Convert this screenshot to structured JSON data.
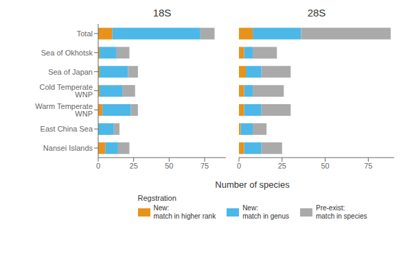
{
  "chart_data": [
    {
      "type": "bar",
      "orientation": "horizontal",
      "stacked": true,
      "title": "18S",
      "xlabel": "Number of species",
      "legend_title": "Regstration",
      "categories": [
        "Total",
        "Sea of Okhotsk",
        "Sea of Japan",
        "Cold Temperate WNP",
        "Warm Temperate WNP",
        "East China Sea",
        "Nansei Islands"
      ],
      "series": [
        {
          "name": "New:\nmatch in higher rank",
          "color": "#E8921A",
          "values": [
            10,
            1,
            1,
            1,
            3,
            0,
            5
          ]
        },
        {
          "name": "New:\nmatch in genus",
          "color": "#4BB8E8",
          "values": [
            62,
            12,
            20,
            16,
            20,
            11,
            9
          ]
        },
        {
          "name": "Pre-exist:\nmatch in species",
          "color": "#AAAAAA",
          "values": [
            10,
            9,
            7,
            9,
            5,
            4,
            8
          ]
        }
      ],
      "xlim": [
        0,
        90
      ],
      "xticks": [
        0,
        25,
        50,
        75
      ],
      "grid": false
    },
    {
      "type": "bar",
      "orientation": "horizontal",
      "stacked": true,
      "title": "28S",
      "tick_labels": "x",
      "categories": [
        "Total",
        "Sea of Okhotsk",
        "Sea of Japan",
        "Cold Temperate WNP",
        "Warm Temperate WNP",
        "East China Sea",
        "Nansei Islands"
      ],
      "series": [
        {
          "name": "New:\nmatch in higher rank",
          "color": "#E8921A",
          "values": [
            8,
            3,
            4,
            3,
            3,
            1,
            3
          ]
        },
        {
          "name": "New:\nmatch in genus",
          "color": "#4BB8E8",
          "values": [
            28,
            5,
            9,
            5,
            10,
            7,
            10
          ]
        },
        {
          "name": "Pre-exist:\nmatch in species",
          "color": "#AAAAAA",
          "values": [
            52,
            14,
            17,
            18,
            17,
            8,
            12
          ]
        }
      ],
      "xlim": [
        0,
        90
      ],
      "xticks": [
        0,
        25,
        50,
        75
      ],
      "grid": false
    }
  ]
}
